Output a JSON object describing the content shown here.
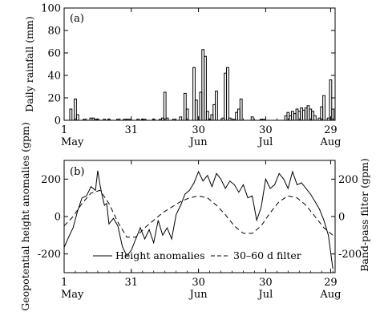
{
  "chart_data": [
    {
      "type": "bar",
      "panel_label": "(a)",
      "ylabel": "Daily rainfall (mm)",
      "ylim": [
        0,
        100
      ],
      "yticks": [
        0,
        20,
        40,
        60,
        80,
        100
      ],
      "xlim": [
        1,
        122
      ],
      "xticks": [
        {
          "day": 1,
          "label": "1",
          "month": "May"
        },
        {
          "day": 31,
          "label": "31",
          "month": ""
        },
        {
          "day": 61,
          "label": "30",
          "month": "Jun"
        },
        {
          "day": 91,
          "label": "30",
          "month": "Jul"
        },
        {
          "day": 120,
          "label": "29",
          "month": "Aug"
        }
      ],
      "x": [
        1,
        2,
        3,
        4,
        5,
        6,
        7,
        8,
        9,
        10,
        11,
        12,
        13,
        14,
        15,
        16,
        17,
        18,
        19,
        20,
        21,
        22,
        23,
        24,
        25,
        26,
        27,
        28,
        29,
        30,
        31,
        32,
        33,
        34,
        35,
        36,
        37,
        38,
        39,
        40,
        41,
        42,
        43,
        44,
        45,
        46,
        47,
        48,
        49,
        50,
        51,
        52,
        53,
        54,
        55,
        56,
        57,
        58,
        59,
        60,
        61,
        62,
        63,
        64,
        65,
        66,
        67,
        68,
        69,
        70,
        71,
        72,
        73,
        74,
        75,
        76,
        77,
        78,
        79,
        80,
        81,
        82,
        83,
        84,
        85,
        86,
        87,
        88,
        89,
        90,
        91,
        92,
        93,
        94,
        95,
        96,
        97,
        98,
        99,
        100,
        101,
        102,
        103,
        104,
        105,
        106,
        107,
        108,
        109,
        110,
        111,
        112,
        113,
        114,
        115,
        116,
        117,
        118,
        119,
        120,
        121
      ],
      "values": [
        0,
        0,
        0,
        10,
        0,
        19,
        5,
        0,
        0,
        1,
        0,
        0,
        2,
        2,
        1,
        1,
        0,
        0,
        1,
        0,
        1,
        0,
        0,
        0,
        1,
        0,
        0,
        1,
        1,
        1,
        0,
        0,
        0,
        1,
        0,
        1,
        1,
        0,
        0,
        0,
        1,
        0,
        0,
        1,
        2,
        25,
        2,
        0,
        0,
        1,
        0,
        0,
        3,
        0,
        24,
        10,
        0,
        0,
        47,
        18,
        0,
        25,
        63,
        57,
        8,
        1,
        5,
        14,
        26,
        0,
        0,
        2,
        42,
        47,
        2,
        0,
        1,
        7,
        10,
        19,
        0,
        0,
        0,
        0,
        3,
        0,
        0,
        0,
        1,
        1,
        0,
        0,
        0,
        0,
        0,
        0,
        0,
        0,
        0,
        4,
        7,
        4,
        8,
        6,
        10,
        8,
        11,
        9,
        11,
        13,
        10,
        8,
        4,
        0,
        2,
        12,
        22,
        0,
        2,
        36,
        10
      ]
    },
    {
      "type": "line",
      "panel_label": "(b)",
      "ylabel": "Geopotential height anomalies (gpm)",
      "y2label": "Band-pass filter (gpm)",
      "ylim": [
        -300,
        300
      ],
      "yticks": [
        -200,
        0,
        200
      ],
      "y2ticks": [
        -200,
        0,
        200
      ],
      "xlim": [
        1,
        122
      ],
      "xticks": [
        {
          "day": 1,
          "label": "1",
          "month": "May"
        },
        {
          "day": 31,
          "label": "31",
          "month": ""
        },
        {
          "day": 61,
          "label": "30",
          "month": "Jun"
        },
        {
          "day": 91,
          "label": "30",
          "month": "Jul"
        },
        {
          "day": 120,
          "label": "29",
          "month": "Aug"
        }
      ],
      "legend": {
        "position": "bottom",
        "entries": [
          {
            "label": "Height anomalies",
            "style": "solid"
          },
          {
            "label": "30–60 d filter",
            "style": "dashed"
          }
        ]
      },
      "series": [
        {
          "key": "height",
          "style": "solid",
          "x": [
            1,
            3,
            5,
            7,
            9,
            11,
            13,
            15,
            16,
            17,
            18,
            19,
            20,
            21,
            23,
            25,
            27,
            29,
            31,
            33,
            35,
            37,
            39,
            41,
            43,
            45,
            47,
            49,
            51,
            53,
            55,
            57,
            59,
            61,
            63,
            65,
            67,
            69,
            71,
            73,
            75,
            77,
            79,
            81,
            83,
            85,
            87,
            89,
            91,
            93,
            95,
            97,
            99,
            101,
            103,
            105,
            107,
            109,
            111,
            113,
            115,
            117,
            119,
            121
          ],
          "values": [
            -165,
            -110,
            -60,
            30,
            100,
            110,
            160,
            140,
            245,
            170,
            110,
            60,
            70,
            -40,
            -10,
            -50,
            -160,
            -210,
            -180,
            -120,
            -60,
            -120,
            -70,
            -140,
            -20,
            -100,
            -60,
            -120,
            10,
            60,
            120,
            140,
            180,
            240,
            190,
            220,
            160,
            230,
            200,
            150,
            190,
            170,
            130,
            170,
            100,
            110,
            -20,
            50,
            200,
            150,
            170,
            230,
            200,
            150,
            240,
            170,
            180,
            150,
            120,
            80,
            40,
            -20,
            -100,
            -280
          ]
        },
        {
          "key": "filter",
          "style": "dashed",
          "x": [
            1,
            5,
            9,
            13,
            17,
            21,
            25,
            29,
            33,
            37,
            41,
            45,
            49,
            53,
            57,
            61,
            65,
            69,
            73,
            77,
            81,
            85,
            89,
            93,
            97,
            101,
            105,
            109,
            113,
            117,
            121
          ],
          "values": [
            -50,
            0,
            70,
            125,
            140,
            70,
            -30,
            -110,
            -110,
            -60,
            -20,
            20,
            50,
            80,
            100,
            110,
            100,
            60,
            10,
            -50,
            -90,
            -90,
            -50,
            20,
            80,
            110,
            100,
            60,
            0,
            -60,
            -100
          ]
        }
      ]
    }
  ]
}
